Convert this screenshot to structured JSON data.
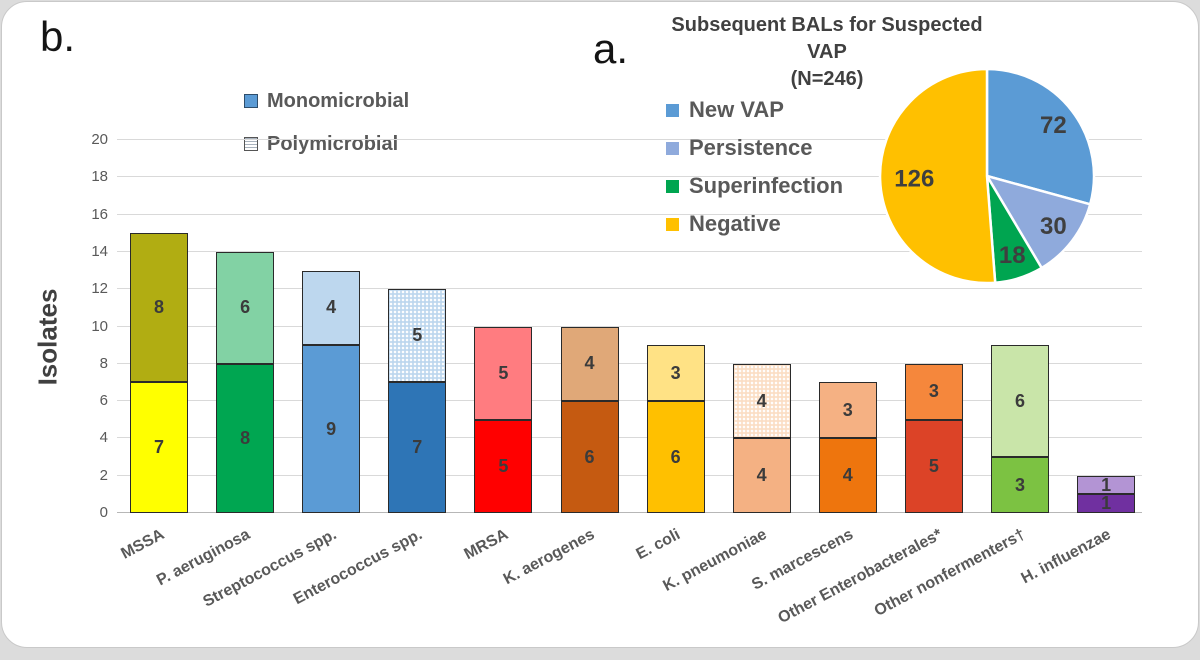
{
  "panels": {
    "b_label": "b.",
    "a_label": "a."
  },
  "chart_data": [
    {
      "type": "bar",
      "stacked": true,
      "title": "",
      "xlabel": "",
      "ylabel": "Isolates",
      "ylim": [
        0,
        20
      ],
      "ytick_step": 2,
      "grid": true,
      "legend_position": "top",
      "legend": [
        {
          "name": "Monomicrobial",
          "swatch_color": "#5B9BD5",
          "swatch_style": "solid"
        },
        {
          "name": "Polymicrobial",
          "swatch_color": "#FFFFFF",
          "swatch_style": "hatched"
        }
      ],
      "categories": [
        "MSSA",
        "P.  aeruginosa",
        "Streptococcus spp.",
        "Enterococcus spp.",
        "MRSA",
        "K. aerogenes",
        "E. coli",
        "K. pneumoniae",
        "S. marcescens",
        "Other Enterobacterales*",
        "Other nonfermenters†",
        "H. influenzae"
      ],
      "series": [
        {
          "name": "Monomicrobial",
          "values": [
            7,
            8,
            9,
            7,
            5,
            6,
            6,
            4,
            4,
            5,
            3,
            1
          ],
          "colors": [
            "#FFFF00",
            "#00A651",
            "#5B9BD5",
            "#2E75B6",
            "#FF0000",
            "#C55A11",
            "#FFC000",
            "#F4B183",
            "#EE750D",
            "#DC4327",
            "#7CC242",
            "#7030A0"
          ]
        },
        {
          "name": "Polymicrobial",
          "values": [
            8,
            6,
            4,
            5,
            5,
            4,
            3,
            4,
            3,
            3,
            6,
            1
          ],
          "colors": [
            "#B1AD12",
            "#82D2A4",
            "#BDD7EE",
            "#BDD7EE",
            "#FF7C80",
            "#E0A878",
            "#FFE285",
            "#FBDEC5",
            "#F5B183",
            "#F5873C",
            "#C9E5A9",
            "#B394D4"
          ],
          "dotted": [
            false,
            false,
            false,
            true,
            false,
            false,
            false,
            true,
            false,
            false,
            false,
            false
          ]
        }
      ],
      "totals": [
        15,
        14,
        13,
        12,
        10,
        10,
        9,
        8,
        7,
        8,
        9,
        2
      ]
    },
    {
      "type": "pie",
      "title": "Subsequent BALs for Suspected VAP",
      "subtitle": "(N=246)",
      "total": 246,
      "legend_position": "left",
      "value_label_color": "#3F3F3F",
      "slices": [
        {
          "label": "New VAP",
          "value": 72,
          "color": "#5B9BD5"
        },
        {
          "label": "Persistence",
          "value": 30,
          "color": "#8FAADC"
        },
        {
          "label": "Superinfection",
          "value": 18,
          "color": "#00A550"
        },
        {
          "label": "Negative",
          "value": 126,
          "color": "#FFC000"
        }
      ]
    }
  ]
}
